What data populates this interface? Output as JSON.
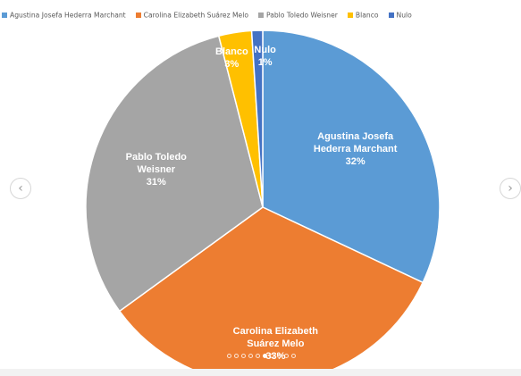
{
  "chart_data": {
    "type": "pie",
    "title": "",
    "legend_position": "top",
    "series": [
      {
        "name": "Agustina Josefa Hederra Marchant",
        "label_lines": [
          "Agustina Josefa",
          "Hederra Marchant"
        ],
        "value": 32,
        "label": "32%",
        "color": "#5b9bd5"
      },
      {
        "name": "Carolina Elizabeth Suárez Melo",
        "label_lines": [
          "Carolina Elizabeth",
          "Suárez Melo"
        ],
        "value": 33,
        "label": "33%",
        "color": "#ed7d31"
      },
      {
        "name": "Pablo Toledo Weisner",
        "label_lines": [
          "Pablo Toledo",
          "Weisner"
        ],
        "value": 31,
        "label": "31%",
        "color": "#a5a5a5"
      },
      {
        "name": "Blanco",
        "label_lines": [
          "Blanco"
        ],
        "value": 3,
        "label": "3%",
        "color": "#ffc000"
      },
      {
        "name": "Nulo",
        "label_lines": [
          "Nulo"
        ],
        "value": 1,
        "label": "1%",
        "color": "#4472c4"
      }
    ]
  },
  "carousel": {
    "prev_icon": "‹",
    "next_icon": "›",
    "slide_count": 10,
    "active_slide": 6
  }
}
